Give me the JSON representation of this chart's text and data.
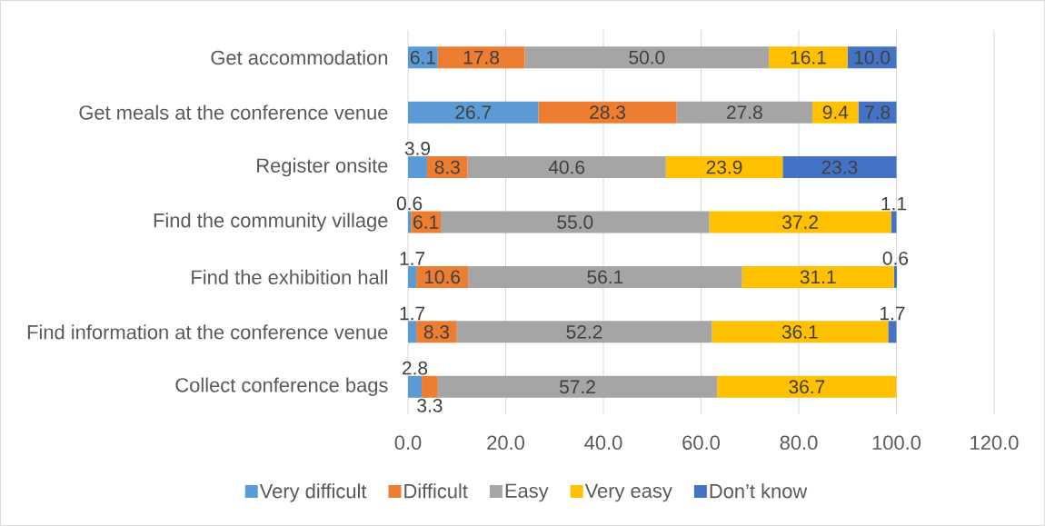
{
  "chart_data": {
    "type": "bar",
    "orientation": "horizontal",
    "stacked": true,
    "categories": [
      "Get accommodation",
      "Get meals at the conference venue",
      "Register onsite",
      "Find the community village",
      "Find the exhibition hall",
      "Find information at the conference venue",
      "Collect conference bags"
    ],
    "series": [
      {
        "name": "Very difficult",
        "color": "#5b9bd5",
        "values": [
          6.1,
          26.7,
          3.9,
          0.6,
          1.7,
          1.7,
          2.8
        ],
        "value_labels": [
          "6.1",
          "26.7",
          "3.9",
          "0.6",
          "1.7",
          "1.7",
          "2.8"
        ]
      },
      {
        "name": "Difficult",
        "color": "#ed7d31",
        "values": [
          17.8,
          28.3,
          8.3,
          6.1,
          10.6,
          8.3,
          3.3
        ],
        "value_labels": [
          "17.8",
          "28.3",
          "8.3",
          "6.1",
          "10.6",
          "8.3",
          "3.3"
        ]
      },
      {
        "name": "Easy",
        "color": "#a5a5a5",
        "values": [
          50.0,
          27.8,
          40.6,
          55.0,
          56.1,
          52.2,
          57.2
        ],
        "value_labels": [
          "50.0",
          "27.8",
          "40.6",
          "55.0",
          "56.1",
          "52.2",
          "57.2"
        ]
      },
      {
        "name": "Very easy",
        "color": "#ffc000",
        "values": [
          16.1,
          9.4,
          23.9,
          37.2,
          31.1,
          36.1,
          36.7
        ],
        "value_labels": [
          "16.1",
          "9.4",
          "23.9",
          "37.2",
          "31.1",
          "36.1",
          "36.7"
        ]
      },
      {
        "name": "Don’t know",
        "color": "#4472c4",
        "values": [
          10.0,
          7.8,
          23.3,
          1.1,
          0.6,
          1.7,
          null
        ],
        "value_labels": [
          "10.0",
          "7.8",
          "23.3",
          "1.1",
          "0.6",
          "1.7",
          null
        ]
      }
    ],
    "xlim": [
      0,
      120
    ],
    "xticks": [
      {
        "value": 0,
        "label": "0.0"
      },
      {
        "value": 20,
        "label": "20.0"
      },
      {
        "value": 40,
        "label": "40.0"
      },
      {
        "value": 60,
        "label": "60.0"
      },
      {
        "value": 80,
        "label": "80.0"
      },
      {
        "value": 100,
        "label": "100.0"
      },
      {
        "value": 120,
        "label": "120.0"
      }
    ],
    "grid": "x",
    "legend": "bottom"
  }
}
